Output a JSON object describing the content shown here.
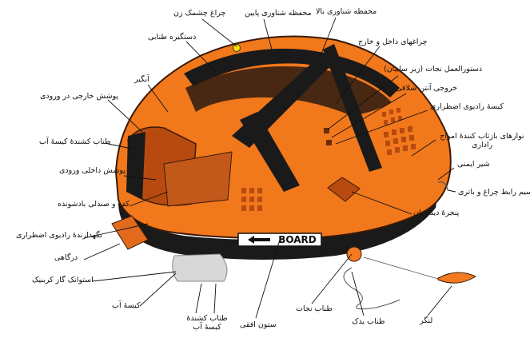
{
  "labels": {
    "flashing_light": "چراغ چشمک زن",
    "lower_canopy_guard": "محفظه شناوری پایین",
    "upper_canopy_guard": "محفظه شناوری بالا",
    "boarding_handle": "دستگیره طنابی",
    "inner_outer_lights": "چراغهای داخل و خارج",
    "survival_instructions": "دستورالعمل نجات (زیر سایبان)",
    "rain_catcher": "آبگیر",
    "antenna_outlet": "خروجی آنتن شلاقی",
    "outer_entrance_cover": "پوشش خارجی در ورودی",
    "emergency_radio_bag": "کیسهٔ رادیوی اضطراری",
    "water_bag_line": "طناب کشندهٔ کیسهٔ آب",
    "radar_reflector_tapes": "نوارهای بازتاب کنندهٔ امواج راداری",
    "inner_entrance_cover": "پوشش داخلی ورودی",
    "safety_valve": "شیر ایمنی",
    "floor_and_seat": "کف و صندلی بادشونده",
    "light_battery_cable": "سیم رابط چراغ و باتری",
    "radio_holder": "نگهدارندهٔ رادیوی اضطراری",
    "viewing_window": "پنجرهٔ دیده بان",
    "boarding_ladder": "درگاهی",
    "co2_cylinder": "استوانک گاز کربنیک",
    "water_bag": "کیسهٔ آب",
    "water_bag_pulling_line": "طناب کشندهٔ کیسهٔ آب",
    "horizontal_pillar": "ستون افقی",
    "lifeline": "طناب نجات",
    "tow_line": "طناب یدک",
    "sea_anchor": "لنگر"
  },
  "board_text": "BOARD",
  "colors": {
    "raft_orange": "#f2781c",
    "raft_dark_orange": "#c94e12",
    "black_tube": "#1a1a1a",
    "anchor_orange": "#f47a22",
    "gray_canister": "#d8d8d8"
  }
}
